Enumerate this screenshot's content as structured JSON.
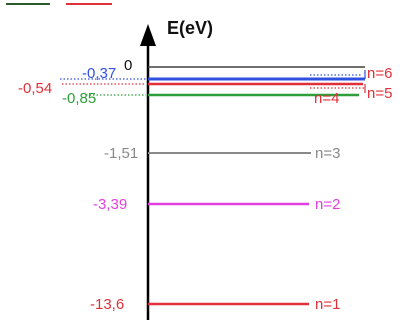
{
  "axis": {
    "title": "E(eV)",
    "zero_label": "0"
  },
  "levels": [
    {
      "n_label": "n=1",
      "energy_label": "-13,6",
      "energy": -13.6,
      "color": "#e0303a"
    },
    {
      "n_label": "n=2",
      "energy_label": "-3,39",
      "energy": -3.39,
      "color": "#e040e0"
    },
    {
      "n_label": "n=3",
      "energy_label": "-1,51",
      "energy": -1.51,
      "color": "#8a8a8a"
    },
    {
      "n_label": "n=4",
      "energy_label": "-0,85",
      "energy": -0.85,
      "color": "#2e9e3a"
    },
    {
      "n_label": "n=5",
      "energy_label": "-0,54",
      "energy": -0.54,
      "color": "#e0303a"
    },
    {
      "n_label": "n=6",
      "energy_label": "-0,37",
      "energy": -0.37,
      "color": "#3050e0"
    }
  ],
  "colors": {
    "axis": "#000000",
    "zero_line": "#404040",
    "top_left_dark": "#2d5a2a",
    "top_left_red": "#e0303a"
  }
}
